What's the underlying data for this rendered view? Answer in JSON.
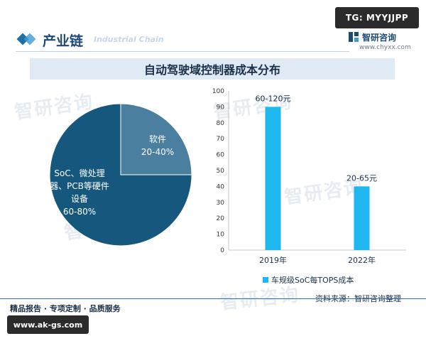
{
  "badge_top": "TG: MYYJJPP",
  "header": {
    "title": "产业链",
    "subtitle": "Industrial Chain",
    "brand": "智研咨询",
    "brand_url": "www.chyxx.com"
  },
  "footer": {
    "left_text": "精品报告 · 专项定制 · 品质服务",
    "source": "资料来源：智研咨询整理",
    "url_badge": "www.ak-gs.com"
  },
  "watermarks": [
    "智研咨询",
    "智研咨询",
    "智研咨询",
    "智研咨询",
    "智研咨询"
  ],
  "chart_data": [
    {
      "type": "pie",
      "title": "自动驾驶域控制器成本分布",
      "slices": [
        {
          "label": "软件",
          "value_label": "20-40%",
          "value": 25,
          "color": "#4a7fa0"
        },
        {
          "label": "SoC、微处理器、PCB等硬件设备",
          "value_label": "60-80%",
          "value": 75,
          "color": "#16587d"
        }
      ]
    },
    {
      "type": "bar",
      "categories": [
        "2019年",
        "2022年"
      ],
      "series": [
        {
          "name": "车规级SoC每TOPS成本",
          "values": [
            90,
            40
          ],
          "color": "#1fb7ef"
        }
      ],
      "data_labels": [
        "60-120元",
        "20-65元"
      ],
      "ylim": [
        0,
        100
      ],
      "yticks": [
        0,
        10,
        20,
        30,
        40,
        50,
        60,
        70,
        80,
        90,
        100
      ]
    }
  ]
}
